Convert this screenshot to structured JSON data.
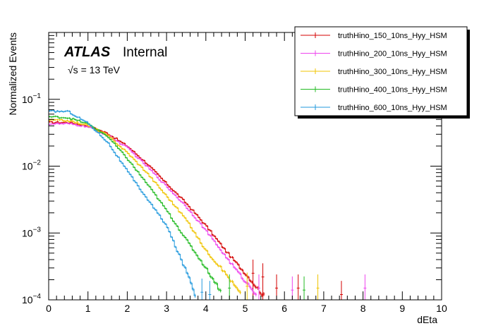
{
  "chart_data": {
    "type": "line",
    "style": "step-histogram",
    "title": "",
    "xlabel": "dEta",
    "ylabel": "Normalized Events",
    "xlim": [
      0,
      10
    ],
    "ylim": [
      0.0001,
      1
    ],
    "yscale": "log",
    "x_ticks": [
      "0",
      "1",
      "2",
      "3",
      "4",
      "5",
      "6",
      "7",
      "8",
      "9",
      "10"
    ],
    "y_ticks": [
      {
        "value": 0.0001,
        "base": "10",
        "exp": "−4"
      },
      {
        "value": 0.001,
        "base": "10",
        "exp": "−3"
      },
      {
        "value": 0.01,
        "base": "10",
        "exp": "−2"
      },
      {
        "value": 0.1,
        "base": "10",
        "exp": "−1"
      }
    ],
    "annotations": {
      "atlas": "ATLAS",
      "internal": "Internal",
      "energy_sqrt": "√s",
      "energy_rest": " = 13 TeV"
    },
    "legend_position": "top-right",
    "series": [
      {
        "name": "truthHino_150_10ns_Hyy_HSM",
        "color": "#d40000",
        "points": [
          [
            0,
            0.045
          ],
          [
            0.5,
            0.045
          ],
          [
            1,
            0.04
          ],
          [
            1.5,
            0.031
          ],
          [
            2,
            0.02
          ],
          [
            2.5,
            0.011
          ],
          [
            3,
            0.0055
          ],
          [
            3.5,
            0.0028
          ],
          [
            4,
            0.0013
          ],
          [
            4.5,
            0.00055
          ],
          [
            5,
            0.00025
          ],
          [
            5.5,
            0.00011
          ]
        ],
        "spikes": [
          [
            5.2,
            0.00025
          ],
          [
            5.45,
            0.00022
          ],
          [
            5.8,
            0.00015
          ],
          [
            6.35,
            0.00015
          ],
          [
            7.45,
            0.00012
          ]
        ]
      },
      {
        "name": "truthHino_200_10ns_Hyy_HSM",
        "color": "#ee44ee",
        "points": [
          [
            0,
            0.043
          ],
          [
            0.5,
            0.043
          ],
          [
            1,
            0.039
          ],
          [
            1.5,
            0.029
          ],
          [
            2,
            0.019
          ],
          [
            2.5,
            0.01
          ],
          [
            3,
            0.005
          ],
          [
            3.5,
            0.0025
          ],
          [
            4,
            0.0011
          ],
          [
            4.5,
            0.00045
          ],
          [
            5,
            0.00019
          ],
          [
            5.3,
            0.00012
          ]
        ],
        "spikes": [
          [
            5.35,
            0.00015
          ],
          [
            6.2,
            0.00014
          ],
          [
            8.05,
            0.00015
          ]
        ]
      },
      {
        "name": "truthHino_300_10ns_Hyy_HSM",
        "color": "#f0c400",
        "points": [
          [
            0,
            0.049
          ],
          [
            0.5,
            0.048
          ],
          [
            1,
            0.041
          ],
          [
            1.5,
            0.029
          ],
          [
            2,
            0.016
          ],
          [
            2.5,
            0.008
          ],
          [
            3,
            0.0036
          ],
          [
            3.5,
            0.0016
          ],
          [
            4,
            0.00055
          ],
          [
            4.5,
            0.00025
          ],
          [
            4.9,
            0.00012
          ]
        ],
        "spikes": [
          [
            5.05,
            0.00016
          ],
          [
            6.85,
            0.00015
          ]
        ]
      },
      {
        "name": "truthHino_400_10ns_Hyy_HSM",
        "color": "#22bb22",
        "points": [
          [
            0,
            0.055
          ],
          [
            0.5,
            0.053
          ],
          [
            1,
            0.043
          ],
          [
            1.5,
            0.028
          ],
          [
            2,
            0.013
          ],
          [
            2.5,
            0.0055
          ],
          [
            3,
            0.0022
          ],
          [
            3.5,
            0.0008
          ],
          [
            4,
            0.0003
          ],
          [
            4.4,
            0.00013
          ]
        ],
        "spikes": [
          [
            4.6,
            0.00015
          ],
          [
            6.5,
            0.00014
          ]
        ]
      },
      {
        "name": "truthHino_600_10ns_Hyy_HSM",
        "color": "#2299dd",
        "points": [
          [
            0,
            0.066
          ],
          [
            0.5,
            0.066
          ],
          [
            1,
            0.044
          ],
          [
            1.5,
            0.023
          ],
          [
            2,
            0.0085
          ],
          [
            2.5,
            0.0033
          ],
          [
            3,
            0.0013
          ],
          [
            3.3,
            0.0005
          ],
          [
            3.6,
            0.0002
          ],
          [
            3.75,
            0.00011
          ]
        ],
        "spikes": [
          [
            3.9,
            0.00013
          ],
          [
            4.1,
            0.00012
          ]
        ]
      }
    ]
  }
}
